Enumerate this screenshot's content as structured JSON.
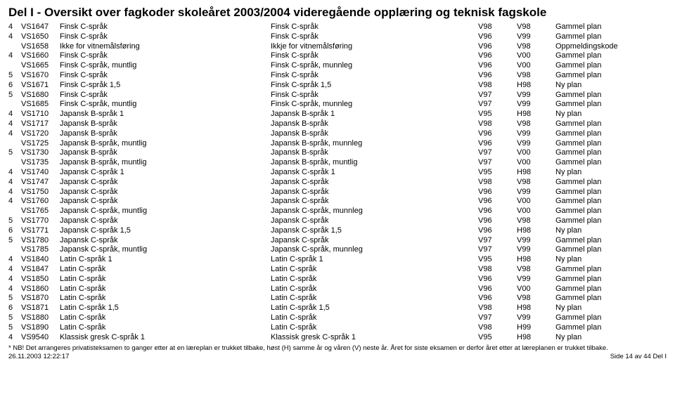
{
  "title": "Del I - Oversikt over fagkoder skoleåret 2003/2004 videregående opplæring og teknisk fagskole",
  "columns": [
    "col_a",
    "col_b",
    "col_c",
    "col_d",
    "col_e",
    "col_f",
    "col_g"
  ],
  "rows": [
    [
      "4",
      "VS1647",
      "Finsk C-språk",
      "Finsk C-språk",
      "V98",
      "V98",
      "Gammel plan"
    ],
    [
      "4",
      "VS1650",
      "Finsk C-språk",
      "Finsk C-språk",
      "V96",
      "V99",
      "Gammel plan"
    ],
    [
      "",
      "VS1658",
      "Ikke for vitnemålsføring",
      "Ikkje for vitnemålsføring",
      "V96",
      "V98",
      "Oppmeldingskode"
    ],
    [
      "4",
      "VS1660",
      "Finsk C-språk",
      "Finsk C-språk",
      "V96",
      "V00",
      "Gammel plan"
    ],
    [
      "",
      "VS1665",
      "Finsk C-språk, muntlig",
      "Finsk C-språk, munnleg",
      "V96",
      "V00",
      "Gammel plan"
    ],
    [
      "5",
      "VS1670",
      "Finsk C-språk",
      "Finsk C-språk",
      "V96",
      "V98",
      "Gammel plan"
    ],
    [
      "6",
      "VS1671",
      "Finsk C-språk 1,5",
      "Finsk C-språk 1,5",
      "V98",
      "H98",
      "Ny plan"
    ],
    [
      "5",
      "VS1680",
      "Finsk C-språk",
      "Finsk C-språk",
      "V97",
      "V99",
      "Gammel plan"
    ],
    [
      "",
      "VS1685",
      "Finsk C-språk, muntlig",
      "Finsk C-språk, munnleg",
      "V97",
      "V99",
      "Gammel plan"
    ],
    [
      "4",
      "VS1710",
      "Japansk B-språk 1",
      "Japansk B-språk 1",
      "V95",
      "H98",
      "Ny plan"
    ],
    [
      "4",
      "VS1717",
      "Japansk B-språk",
      "Japansk B-språk",
      "V98",
      "V98",
      "Gammel plan"
    ],
    [
      "4",
      "VS1720",
      "Japansk B-språk",
      "Japansk B-språk",
      "V96",
      "V99",
      "Gammel plan"
    ],
    [
      "",
      "VS1725",
      "Japansk B-språk, muntlig",
      "Japansk B-språk, munnleg",
      "V96",
      "V99",
      "Gammel plan"
    ],
    [
      "5",
      "VS1730",
      "Japansk B-språk",
      "Japansk B-språk",
      "V97",
      "V00",
      "Gammel plan"
    ],
    [
      "",
      "VS1735",
      "Japansk B-språk, muntlig",
      "Japansk B-språk, muntlig",
      "V97",
      "V00",
      "Gammel plan"
    ],
    [
      "4",
      "VS1740",
      "Japansk C-språk 1",
      "Japansk C-språk 1",
      "V95",
      "H98",
      "Ny plan"
    ],
    [
      "4",
      "VS1747",
      "Japansk C-språk",
      "Japansk C-språk",
      "V98",
      "V98",
      "Gammel plan"
    ],
    [
      "4",
      "VS1750",
      "Japansk C-språk",
      "Japansk C-språk",
      "V96",
      "V99",
      "Gammel plan"
    ],
    [
      "4",
      "VS1760",
      "Japansk C-språk",
      "Japansk C-språk",
      "V96",
      "V00",
      "Gammel plan"
    ],
    [
      "",
      "VS1765",
      "Japansk C-språk, muntlig",
      "Japansk C-språk, munnleg",
      "V96",
      "V00",
      "Gammel plan"
    ],
    [
      "5",
      "VS1770",
      "Japansk C-språk",
      "Japansk C-språk",
      "V96",
      "V98",
      "Gammel plan"
    ],
    [
      "6",
      "VS1771",
      "Japansk C-språk 1,5",
      "Japansk C-språk 1,5",
      "V96",
      "H98",
      "Ny plan"
    ],
    [
      "5",
      "VS1780",
      "Japansk C-språk",
      "Japansk C-språk",
      "V97",
      "V99",
      "Gammel plan"
    ],
    [
      "",
      "VS1785",
      "Japansk C-språk, muntlig",
      "Japansk C-språk, munnleg",
      "V97",
      "V99",
      "Gammel plan"
    ],
    [
      "4",
      "VS1840",
      "Latin C-språk 1",
      "Latin C-språk 1",
      "V95",
      "H98",
      "Ny plan"
    ],
    [
      "4",
      "VS1847",
      "Latin C-språk",
      "Latin C-språk",
      "V98",
      "V98",
      "Gammel plan"
    ],
    [
      "4",
      "VS1850",
      "Latin C-språk",
      "Latin C-språk",
      "V96",
      "V99",
      "Gammel plan"
    ],
    [
      "4",
      "VS1860",
      "Latin C-språk",
      "Latin C-språk",
      "V96",
      "V00",
      "Gammel plan"
    ],
    [
      "5",
      "VS1870",
      "Latin C-språk",
      "Latin C-språk",
      "V96",
      "V98",
      "Gammel plan"
    ],
    [
      "6",
      "VS1871",
      "Latin C-språk 1,5",
      "Latin C-språk 1,5",
      "V98",
      "H98",
      "Ny plan"
    ],
    [
      "5",
      "VS1880",
      "Latin C-språk",
      "Latin C-språk",
      "V97",
      "V99",
      "Gammel plan"
    ],
    [
      "5",
      "VS1890",
      "Latin C-språk",
      "Latin C-språk",
      "V98",
      "H99",
      "Gammel plan"
    ],
    [
      "4",
      "VS9540",
      "Klassisk gresk C-språk 1",
      "Klassisk gresk C-språk 1",
      "V95",
      "H98",
      "Ny plan"
    ]
  ],
  "footnote": "* NB! Det arrangeres privatisteksamen to ganger etter at en læreplan er trukket tilbake, høst (H) samme år og våren (V) neste år. Året for siste eksamen er derfor året etter at læreplanen er trukket tilbake.",
  "footer_left": "26.11.2003 12:22:17",
  "footer_right": "Side 14 av 44  Del I"
}
